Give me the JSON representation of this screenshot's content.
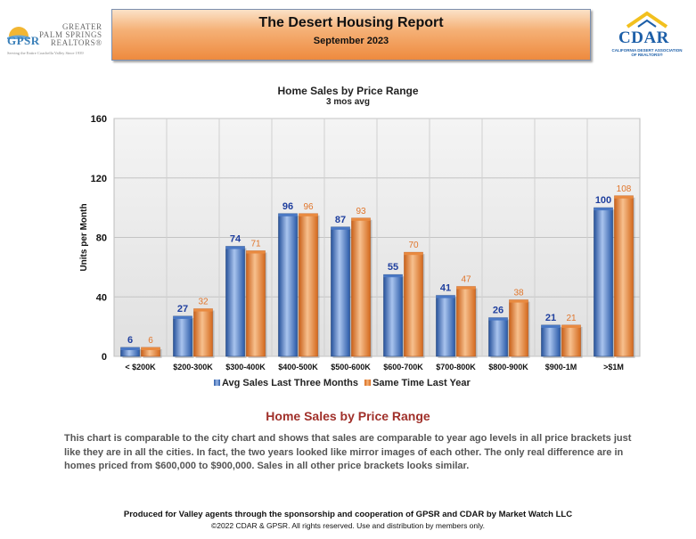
{
  "header": {
    "left_logo": {
      "abbr": "GPSR",
      "lines": [
        "GREATER",
        "PALM SPRINGS",
        "REALTORS®"
      ],
      "tagline": "Serving the Entire Coachella Valley Since 1939"
    },
    "title": "The Desert Housing Report",
    "subtitle": "September 2023",
    "right_logo": {
      "abbr": "CDAR",
      "lines": [
        "CALIFORNIA DESERT ASSOCIATION",
        "OF REALTORS®"
      ]
    }
  },
  "chart_data": {
    "type": "bar",
    "title": "Home Sales by Price Range",
    "subtitle": "3 mos avg",
    "ylabel": "Units per Month",
    "xlabel": "",
    "ylim": [
      0,
      160
    ],
    "yticks": [
      0,
      40,
      80,
      120,
      160
    ],
    "grid": true,
    "legend_position": "bottom",
    "categories": [
      "< $200K",
      "$200-300K",
      "$300-400K",
      "$400-500K",
      "$500-600K",
      "$600-700K",
      "$700-800K",
      "$800-900K",
      "$900-1M",
      ">$1M"
    ],
    "series": [
      {
        "name": "Avg Sales Last Three Months",
        "color": "#3566b0",
        "label_color": "#1f3f9e",
        "values": [
          6,
          27,
          74,
          96,
          87,
          55,
          41,
          26,
          21,
          100
        ]
      },
      {
        "name": "Same Time Last Year",
        "color": "#e07b2c",
        "label_color": "#e0752a",
        "values": [
          6,
          32,
          71,
          96,
          93,
          70,
          47,
          38,
          21,
          108
        ]
      }
    ]
  },
  "section": {
    "title": "Home Sales by Price Range",
    "body": "This chart is comparable to the city chart and shows that sales are comparable to year ago levels in all price brackets just like they are in all the cities. In fact, the two years looked like mirror images of each other. The only real difference are in homes priced from $600,000 to $900,000. Sales in all other price brackets looks similar."
  },
  "footer": {
    "line1": "Produced for Valley agents through the sponsorship and cooperation of GPSR and CDAR by Market Watch LLC",
    "line2": "©2022 CDAR & GPSR.  All rights reserved.  Use and distribution by members only."
  }
}
